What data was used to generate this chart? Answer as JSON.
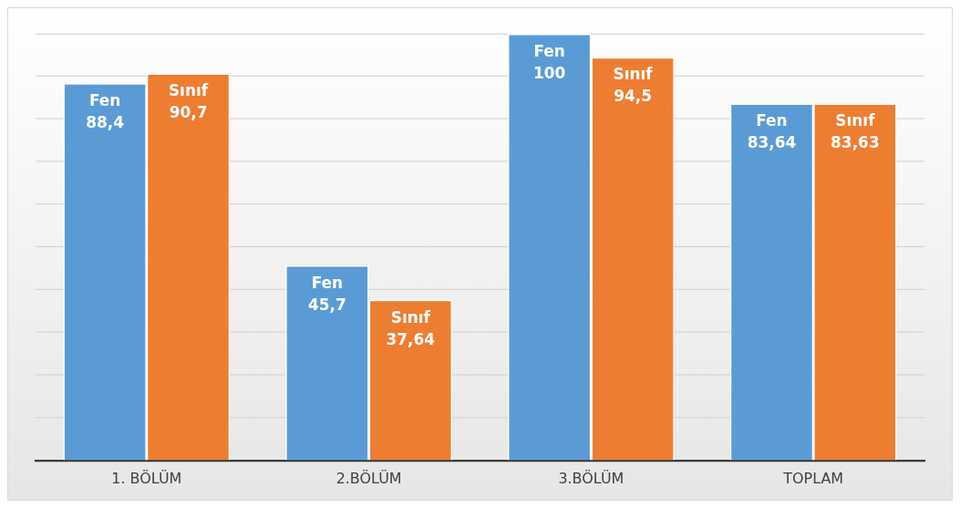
{
  "chart_data": {
    "type": "bar",
    "categories": [
      "1. BÖLÜM",
      "2.BÖLÜM",
      "3.BÖLÜM",
      "TOPLAM"
    ],
    "series": [
      {
        "name": "Fen",
        "color": "#5b9bd5",
        "values": [
          88.4,
          45.7,
          100,
          83.64
        ],
        "value_labels": [
          "88,4",
          "45,7",
          "100",
          "83,64"
        ]
      },
      {
        "name": "Sınıf",
        "color": "#ed7d31",
        "values": [
          90.7,
          37.64,
          94.5,
          83.63
        ],
        "value_labels": [
          "90,7",
          "37,64",
          "94,5",
          "83,63"
        ]
      }
    ],
    "tick_labels": "x",
    "grid": "y",
    "legend": false
  }
}
